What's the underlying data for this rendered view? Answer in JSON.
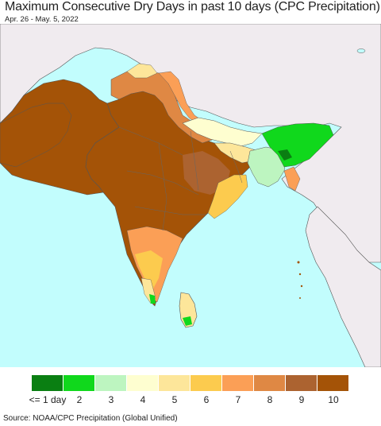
{
  "title": "Maximum Consecutive Dry Days in past 10 days (CPC Precipitation)",
  "date_range": "Apr. 26 - May. 5, 2022",
  "source": "Source: NOAA/CPC Precipitation (Global Unified)",
  "legend": {
    "items": [
      {
        "label": "<= 1 day",
        "color": "#0a7f12"
      },
      {
        "label": "2",
        "color": "#10d81c"
      },
      {
        "label": "3",
        "color": "#bdf5c0"
      },
      {
        "label": "4",
        "color": "#fefed0"
      },
      {
        "label": "5",
        "color": "#fde69a"
      },
      {
        "label": "6",
        "color": "#fccb4e"
      },
      {
        "label": "7",
        "color": "#fb9f56"
      },
      {
        "label": "8",
        "color": "#df8844"
      },
      {
        "label": "9",
        "color": "#ac6330"
      },
      {
        "label": "10",
        "color": "#a45307"
      }
    ]
  },
  "colors": {
    "ocean": "#c2fdfd",
    "outside_land": "#f0ebef",
    "border": "#555555"
  }
}
